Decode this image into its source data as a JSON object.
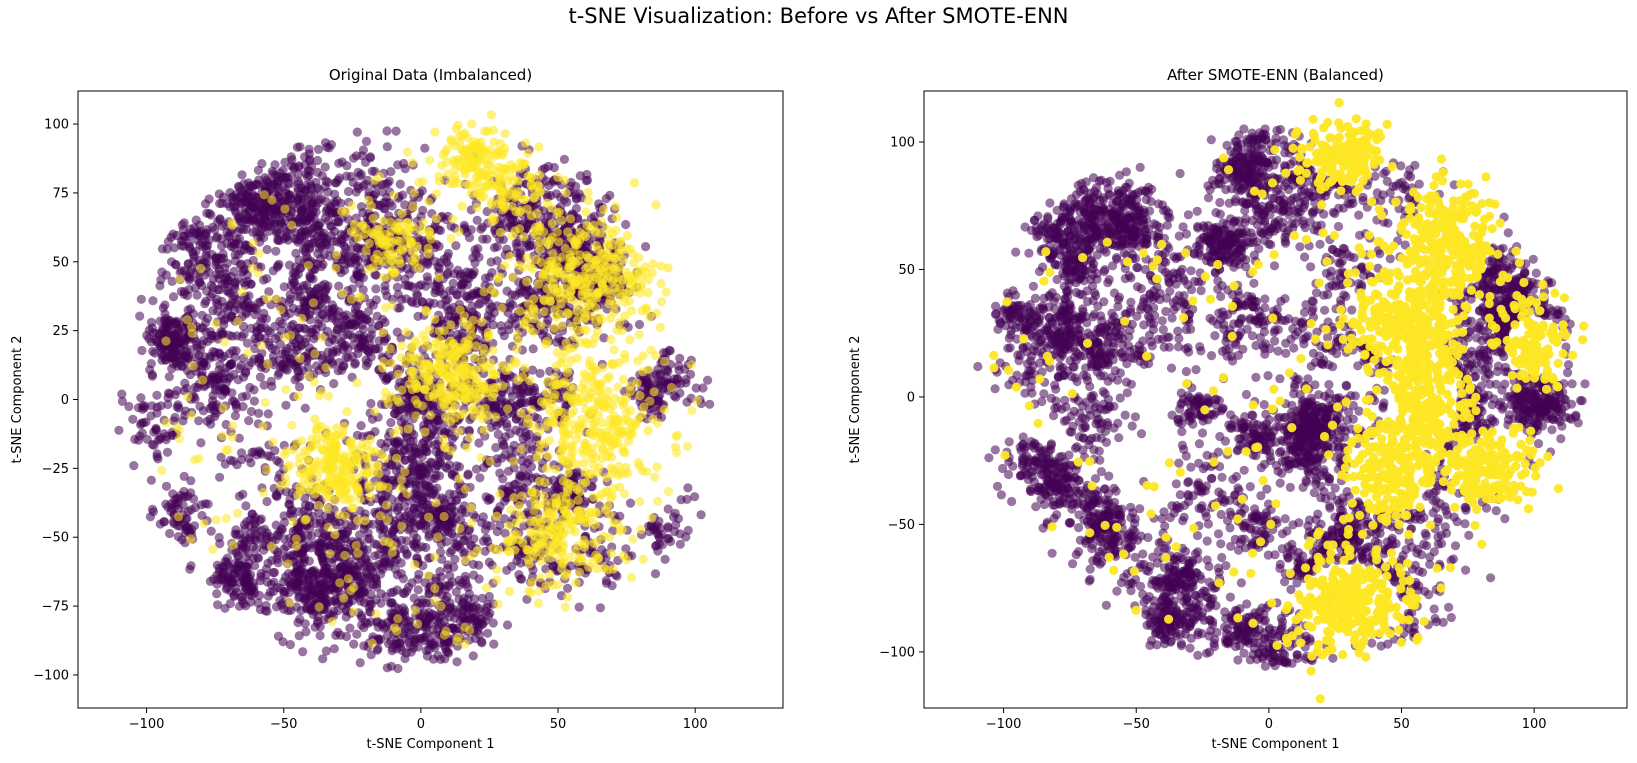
{
  "figure": {
    "suptitle": "t-SNE Visualization: Before vs After SMOTE-ENN"
  },
  "colors": {
    "class0": "#440154",
    "class1": "#fde725",
    "marker_alpha": 0.55
  },
  "chart_data": [
    {
      "type": "scatter",
      "title": "Original Data (Imbalanced)",
      "xlabel": "t-SNE Component 1",
      "ylabel": "t-SNE Component 2",
      "xlim": [
        -125,
        132
      ],
      "ylim": [
        -112,
        112
      ],
      "xticks": [
        -100,
        -50,
        0,
        50,
        100
      ],
      "yticks": [
        -100,
        -75,
        -50,
        -25,
        0,
        25,
        50,
        75,
        100
      ],
      "xtick_labels": [
        "−100",
        "−50",
        "0",
        "50",
        "100"
      ],
      "ytick_labels": [
        "−100",
        "−75",
        "−50",
        "−25",
        "0",
        "25",
        "50",
        "75",
        "100"
      ],
      "grid": false,
      "legend": "none",
      "series": [
        {
          "class": 0,
          "cloud": {
            "center": [
              0,
              0
            ],
            "radius": [
              113,
              100
            ],
            "count": 5200
          }
        },
        {
          "class": 1,
          "clusters": [
            {
              "center": [
                10,
                10
              ],
              "spread": [
                10,
                9
              ],
              "count": 240
            },
            {
              "center": [
                60,
                45
              ],
              "spread": [
                13,
                12
              ],
              "count": 300
            },
            {
              "center": [
                62,
                -8
              ],
              "spread": [
                11,
                14
              ],
              "count": 260
            },
            {
              "center": [
                -30,
                -25
              ],
              "spread": [
                9,
                8
              ],
              "count": 200
            },
            {
              "center": [
                50,
                -48
              ],
              "spread": [
                11,
                9
              ],
              "count": 180
            },
            {
              "center": [
                20,
                88
              ],
              "spread": [
                6,
                6
              ],
              "count": 110
            },
            {
              "center": [
                -10,
                58
              ],
              "spread": [
                7,
                6
              ],
              "count": 90
            },
            {
              "center": [
                30,
                75
              ],
              "spread": [
                8,
                7
              ],
              "count": 90
            }
          ],
          "scatter_count": 320
        }
      ]
    },
    {
      "type": "scatter",
      "title": "After SMOTE-ENN (Balanced)",
      "xlabel": "t-SNE Component 1",
      "ylabel": "t-SNE Component 2",
      "xlim": [
        -130,
        135
      ],
      "ylim": [
        -122,
        120
      ],
      "xticks": [
        -100,
        -50,
        0,
        50,
        100
      ],
      "yticks": [
        -100,
        -50,
        0,
        50,
        100
      ],
      "xtick_labels": [
        "−100",
        "−50",
        "0",
        "50",
        "100"
      ],
      "ytick_labels": [
        "−100",
        "−50",
        "0",
        "50",
        "100"
      ],
      "grid": false,
      "legend": "none",
      "series": [
        {
          "class": 0,
          "cloud": {
            "center": [
              0,
              0
            ],
            "radius": [
              120,
              106
            ],
            "count": 4800
          },
          "exclude_region": "class1-clusters"
        },
        {
          "class": 1,
          "clusters": [
            {
              "center": [
                28,
                95
              ],
              "spread": [
                8,
                7
              ],
              "count": 160
            },
            {
              "center": [
                68,
                60
              ],
              "spread": [
                10,
                12
              ],
              "count": 260
            },
            {
              "center": [
                50,
                30
              ],
              "spread": [
                12,
                9
              ],
              "count": 220
            },
            {
              "center": [
                58,
                0
              ],
              "spread": [
                9,
                14
              ],
              "count": 240
            },
            {
              "center": [
                45,
                -30
              ],
              "spread": [
                9,
                10
              ],
              "count": 200
            },
            {
              "center": [
                82,
                -28
              ],
              "spread": [
                9,
                7
              ],
              "count": 160
            },
            {
              "center": [
                30,
                -80
              ],
              "spread": [
                12,
                10
              ],
              "count": 300
            },
            {
              "center": [
                100,
                20
              ],
              "spread": [
                7,
                8
              ],
              "count": 110
            }
          ],
          "scatter_count": 180
        }
      ]
    }
  ]
}
